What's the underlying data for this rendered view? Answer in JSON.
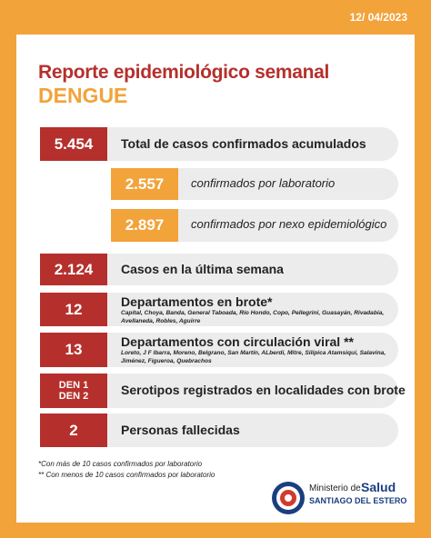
{
  "header": {
    "date": "12/ 04/2023",
    "title": "Reporte epidemiológico semanal",
    "subtitle": "DENGUE"
  },
  "rows": [
    {
      "value": "5.454",
      "label": "Total de casos confirmados acumulados"
    },
    {
      "value": "2.557",
      "label": "confirmados por laboratorio"
    },
    {
      "value": "2.897",
      "label": "confirmados por nexo epidemiológico"
    },
    {
      "value": "2.124",
      "label": "Casos en la última semana"
    },
    {
      "value": "12",
      "label": "Departamentos en brote*",
      "detail": "Capital, Choya, Banda, General Taboada, Río Hondo, Copo, Pellegrini, Guasayán, Rivadabia, Avellaneda, Robles, Aguirre"
    },
    {
      "value": "13",
      "label": "Departamentos con circulación  viral **",
      "detail": "Loreto, J F Ibarra, Moreno, Belgrano, San Martín, ALberdi, Mitre, Silípica Atamsiqui, Salavina, Jiménez, Figueroa, Quebrachos"
    },
    {
      "value": [
        "DEN 1",
        "DEN 2"
      ],
      "label": "Serotipos registrados en localidades con brote"
    },
    {
      "value": "2",
      "label": "Personas fallecidas"
    }
  ],
  "notes": [
    "*Con más de 10 casos confirmados por laboratorio",
    "** Con menos de 10 casos confirmados  por laboratorio"
  ],
  "logo": {
    "line1": "Ministerio de",
    "line2": "Salud",
    "line3": "SANTIAGO DEL ESTERO"
  }
}
